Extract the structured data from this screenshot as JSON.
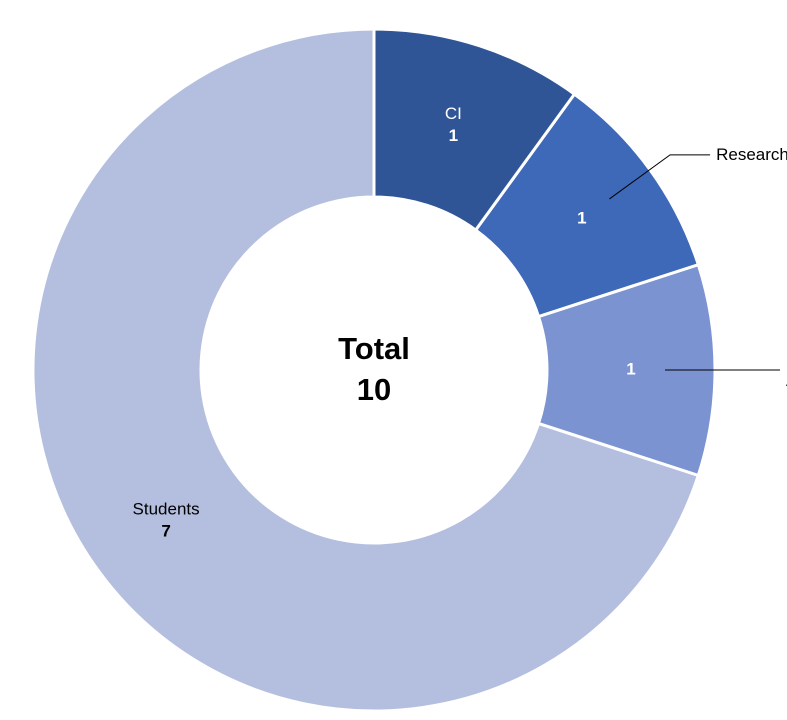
{
  "chart_data": {
    "type": "donut",
    "categories": [
      "CI",
      "Researcher",
      "Post-doctoral Associates",
      "Students"
    ],
    "values": [
      1,
      1,
      1,
      7
    ],
    "colors": [
      "#2f5597",
      "#3e68b8",
      "#7b93d0",
      "#b4bfdf"
    ],
    "center_label": "Total",
    "total": 10
  }
}
